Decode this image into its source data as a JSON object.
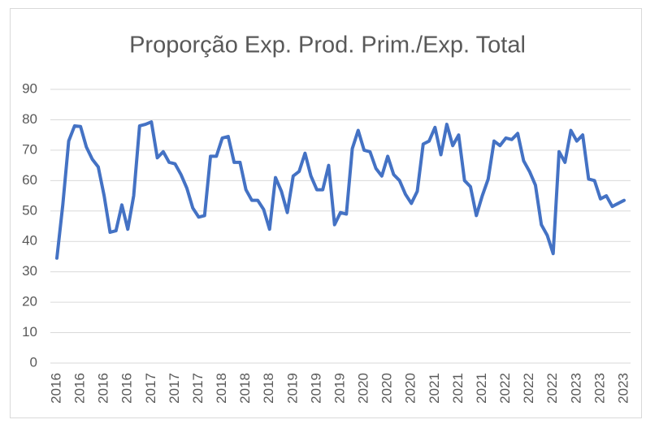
{
  "chart_data": {
    "type": "line",
    "title": "Proporção Exp. Prod. Prim./Exp. Total",
    "categories": [
      "2016",
      null,
      null,
      null,
      "2016",
      null,
      null,
      null,
      "2016",
      null,
      null,
      null,
      "2016",
      null,
      null,
      null,
      "2017",
      null,
      null,
      null,
      "2017",
      null,
      null,
      null,
      "2017",
      null,
      null,
      null,
      "2018",
      null,
      null,
      null,
      "2018",
      null,
      null,
      null,
      "2018",
      null,
      null,
      null,
      "2019",
      null,
      null,
      null,
      "2019",
      null,
      null,
      null,
      "2019",
      null,
      null,
      null,
      "2020",
      null,
      null,
      null,
      "2020",
      null,
      null,
      null,
      "2020",
      null,
      null,
      null,
      "2021",
      null,
      null,
      null,
      "2021",
      null,
      null,
      null,
      "2021",
      null,
      null,
      null,
      "2022",
      null,
      null,
      null,
      "2022",
      null,
      null,
      null,
      "2022",
      null,
      null,
      null,
      "2023",
      null,
      null,
      null,
      "2023",
      null,
      null,
      null,
      "2023"
    ],
    "series": [
      {
        "name": "Proporção",
        "color": "#4472c4",
        "values": [
          34.5,
          52,
          73,
          78,
          77.8,
          71,
          67,
          64.5,
          55,
          43,
          43.5,
          52,
          44,
          55,
          78,
          78.5,
          79.3,
          67.5,
          69.5,
          66,
          65.5,
          62,
          57.5,
          51,
          48,
          48.5,
          68,
          68,
          74,
          74.5,
          66,
          66,
          57,
          53.5,
          53.5,
          50.5,
          44,
          61,
          56.5,
          49.5,
          61.5,
          63,
          69,
          61.5,
          57,
          57,
          65,
          45.5,
          49.5,
          49,
          70.5,
          76.5,
          70,
          69.5,
          64,
          61.5,
          68,
          62,
          60,
          55.5,
          52.5,
          56.5,
          72,
          73,
          77.5,
          68.5,
          78.5,
          71.5,
          75,
          60,
          58,
          48.5,
          55,
          60.5,
          73,
          71.5,
          74,
          73.5,
          75.5,
          66.5,
          63,
          58.5,
          45.5,
          42,
          36,
          69.5,
          66,
          76.5,
          73,
          75,
          60.5,
          60,
          54,
          55,
          51.5,
          52.5,
          53.5
        ]
      }
    ],
    "ylim": [
      0,
      90
    ],
    "yticks": [
      0,
      10,
      20,
      30,
      40,
      50,
      60,
      70,
      80,
      90
    ],
    "grid": true
  }
}
